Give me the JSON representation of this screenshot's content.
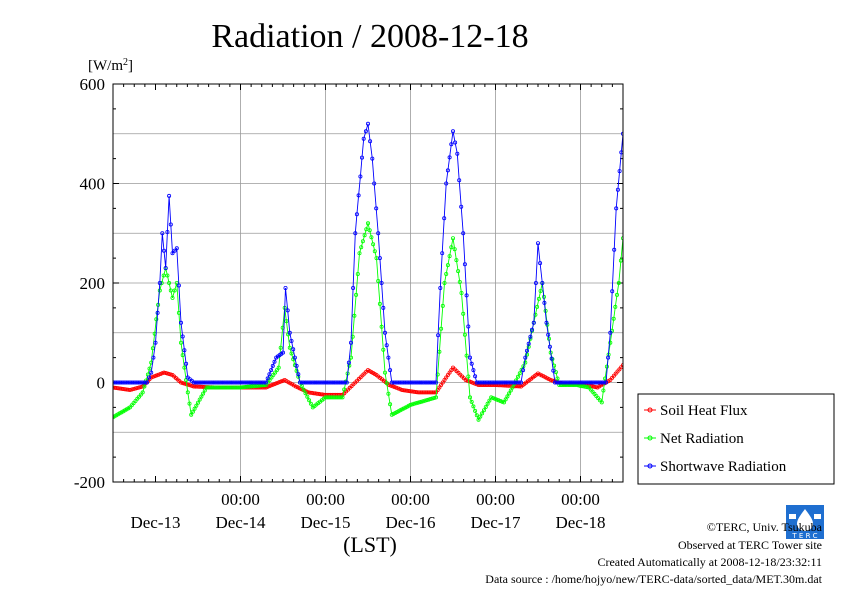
{
  "chart_data": {
    "type": "line",
    "title": "Radiation / 2008-12-18",
    "ylabel": "[W/m",
    "ylabel_sup": "2",
    "ylabel_close": "]",
    "xlabel": "(LST)",
    "ylim": [
      -200,
      600
    ],
    "yticks": [
      "600",
      "400",
      "200",
      "0",
      "-200"
    ],
    "ytick_values": [
      600,
      400,
      200,
      0,
      -200
    ],
    "xlim": [
      12.5,
      18.5
    ],
    "xtick_times": [
      "00:00",
      "00:00",
      "00:00",
      "00:00",
      "00:00"
    ],
    "xtick_positions": [
      14,
      15,
      16,
      17,
      18
    ],
    "day_labels": [
      "Dec-13",
      "Dec-14",
      "Dec-15",
      "Dec-16",
      "Dec-17",
      "Dec-18"
    ],
    "day_label_positions": [
      13.5,
      14.5,
      15.5,
      16.5,
      17.5,
      18.5
    ],
    "grid": true,
    "legend_position": "right",
    "series": [
      {
        "name": "Soil Heat Flux",
        "color": "#ff0000",
        "points": [
          [
            12.5,
            -10
          ],
          [
            12.7,
            -15
          ],
          [
            12.85,
            -8
          ],
          [
            12.95,
            10
          ],
          [
            13.1,
            20
          ],
          [
            13.2,
            15
          ],
          [
            13.3,
            0
          ],
          [
            13.45,
            -8
          ],
          [
            13.7,
            -10
          ],
          [
            14.0,
            -10
          ],
          [
            14.3,
            -10
          ],
          [
            14.52,
            5
          ],
          [
            14.65,
            -8
          ],
          [
            14.8,
            -20
          ],
          [
            15.0,
            -25
          ],
          [
            15.2,
            -25
          ],
          [
            15.35,
            0
          ],
          [
            15.5,
            25
          ],
          [
            15.6,
            15
          ],
          [
            15.75,
            -5
          ],
          [
            15.9,
            -15
          ],
          [
            16.1,
            -20
          ],
          [
            16.3,
            -20
          ],
          [
            16.5,
            30
          ],
          [
            16.65,
            5
          ],
          [
            16.8,
            -5
          ],
          [
            17.0,
            -5
          ],
          [
            17.3,
            -8
          ],
          [
            17.5,
            18
          ],
          [
            17.65,
            5
          ],
          [
            17.8,
            -3
          ],
          [
            18.0,
            -3
          ],
          [
            18.2,
            -10
          ],
          [
            18.35,
            5
          ],
          [
            18.5,
            35
          ],
          [
            18.65,
            15
          ],
          [
            18.8,
            -20
          ],
          [
            18.95,
            -20
          ]
        ]
      },
      {
        "name": "Net Radiation",
        "color": "#00ff00",
        "points": [
          [
            12.5,
            -70
          ],
          [
            12.7,
            -50
          ],
          [
            12.85,
            -20
          ],
          [
            12.95,
            40
          ],
          [
            13.05,
            185
          ],
          [
            13.12,
            230
          ],
          [
            13.2,
            170
          ],
          [
            13.25,
            200
          ],
          [
            13.3,
            80
          ],
          [
            13.38,
            -20
          ],
          [
            13.42,
            -65
          ],
          [
            13.6,
            -10
          ],
          [
            13.8,
            -10
          ],
          [
            14.0,
            -10
          ],
          [
            14.3,
            -5
          ],
          [
            14.45,
            30
          ],
          [
            14.52,
            150
          ],
          [
            14.58,
            70
          ],
          [
            14.7,
            0
          ],
          [
            14.85,
            -50
          ],
          [
            15.0,
            -30
          ],
          [
            15.2,
            -30
          ],
          [
            15.3,
            50
          ],
          [
            15.4,
            260
          ],
          [
            15.5,
            320
          ],
          [
            15.6,
            250
          ],
          [
            15.7,
            20
          ],
          [
            15.78,
            -65
          ],
          [
            16.0,
            -45
          ],
          [
            16.3,
            -30
          ],
          [
            16.4,
            200
          ],
          [
            16.5,
            290
          ],
          [
            16.6,
            180
          ],
          [
            16.7,
            -30
          ],
          [
            16.8,
            -75
          ],
          [
            16.95,
            -30
          ],
          [
            17.1,
            -40
          ],
          [
            17.2,
            -10
          ],
          [
            17.35,
            40
          ],
          [
            17.45,
            120
          ],
          [
            17.55,
            200
          ],
          [
            17.65,
            60
          ],
          [
            17.75,
            -5
          ],
          [
            17.95,
            -5
          ],
          [
            18.1,
            -10
          ],
          [
            18.25,
            -40
          ],
          [
            18.35,
            80
          ],
          [
            18.45,
            200
          ],
          [
            18.5,
            290
          ],
          [
            18.6,
            250
          ],
          [
            18.7,
            60
          ],
          [
            18.8,
            -50
          ],
          [
            18.95,
            -35
          ],
          [
            19.0,
            -70
          ]
        ]
      },
      {
        "name": "Shortwave Radiation",
        "color": "#0000ff",
        "points": [
          [
            12.5,
            0
          ],
          [
            12.7,
            0
          ],
          [
            12.9,
            0
          ],
          [
            12.95,
            20
          ],
          [
            13.0,
            80
          ],
          [
            13.05,
            200
          ],
          [
            13.08,
            300
          ],
          [
            13.12,
            230
          ],
          [
            13.16,
            375
          ],
          [
            13.2,
            260
          ],
          [
            13.25,
            270
          ],
          [
            13.3,
            120
          ],
          [
            13.38,
            10
          ],
          [
            13.45,
            0
          ],
          [
            14.0,
            0
          ],
          [
            14.3,
            0
          ],
          [
            14.42,
            50
          ],
          [
            14.5,
            60
          ],
          [
            14.53,
            190
          ],
          [
            14.58,
            100
          ],
          [
            14.7,
            0
          ],
          [
            15.0,
            0
          ],
          [
            15.25,
            0
          ],
          [
            15.3,
            80
          ],
          [
            15.35,
            300
          ],
          [
            15.45,
            490
          ],
          [
            15.5,
            520
          ],
          [
            15.55,
            450
          ],
          [
            15.62,
            300
          ],
          [
            15.7,
            100
          ],
          [
            15.78,
            0
          ],
          [
            16.0,
            0
          ],
          [
            16.3,
            0
          ],
          [
            16.35,
            190
          ],
          [
            16.42,
            400
          ],
          [
            16.5,
            505
          ],
          [
            16.55,
            460
          ],
          [
            16.62,
            300
          ],
          [
            16.7,
            50
          ],
          [
            16.78,
            0
          ],
          [
            17.0,
            0
          ],
          [
            17.3,
            0
          ],
          [
            17.35,
            50
          ],
          [
            17.45,
            120
          ],
          [
            17.5,
            280
          ],
          [
            17.55,
            200
          ],
          [
            17.6,
            120
          ],
          [
            17.7,
            0
          ],
          [
            18.0,
            0
          ],
          [
            18.3,
            0
          ],
          [
            18.35,
            100
          ],
          [
            18.42,
            350
          ],
          [
            18.5,
            500
          ],
          [
            18.55,
            460
          ],
          [
            18.6,
            300
          ],
          [
            18.7,
            100
          ],
          [
            18.8,
            0
          ],
          [
            19.0,
            0
          ]
        ]
      }
    ]
  },
  "credits": {
    "copyright": "©TERC, Univ. Tsukuba",
    "site": "Observed at TERC Tower site",
    "created": "Created Automatically at 2008-12-18/23:32:11",
    "source": "Data source : /home/hojyo/new/TERC-data/sorted_data/MET.30m.dat",
    "logo_text": "T E R C"
  }
}
